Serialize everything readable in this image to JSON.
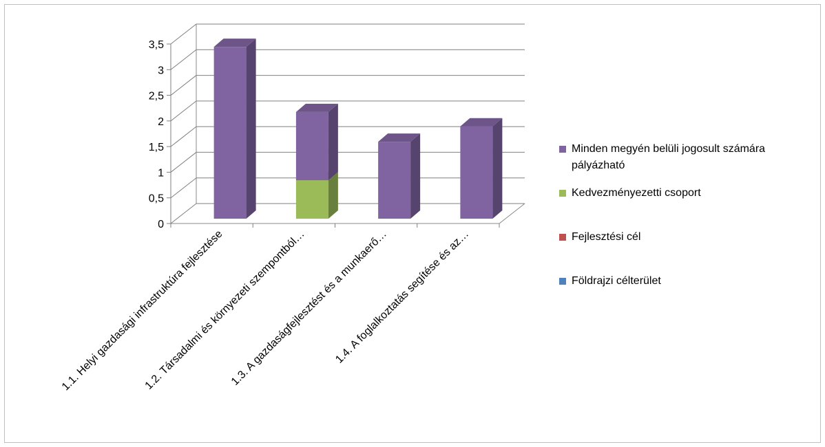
{
  "chart_data": {
    "type": "bar",
    "variant": "3d-stacked-column",
    "categories": [
      "1.1. Helyi gazdasági infrastruktúra fejlesztése",
      "1.2. Társadalmi és környezeti szempontból…",
      "1.3. A gazdaságfejlesztést és a munkaerő…",
      "1.4. A foglalkoztatás segítése és az…"
    ],
    "series": [
      {
        "name": "Földrajzi célterület",
        "color": "#4F81BD",
        "values": [
          0,
          0,
          0,
          0
        ]
      },
      {
        "name": "Fejlesztési cél",
        "color": "#C0504D",
        "values": [
          0,
          0,
          0,
          0
        ]
      },
      {
        "name": "Kedvezményezetti csoport",
        "color": "#9BBB59",
        "values": [
          0,
          0.75,
          0,
          0
        ]
      },
      {
        "name": "Minden megyén belüli jogosult számára pályázható",
        "color": "#8064A2",
        "values": [
          3.35,
          1.33,
          1.5,
          1.8
        ]
      }
    ],
    "yticks": [
      "0",
      "0,5",
      "1",
      "1,5",
      "2",
      "2,5",
      "3",
      "3,5"
    ],
    "ylim": [
      0,
      3.5
    ],
    "grid": true,
    "legend_position": "right"
  },
  "legend": {
    "items": [
      {
        "label": "Minden megyén belüli jogosult számára pályázható",
        "color": "#8064A2"
      },
      {
        "label": "Kedvezményezetti csoport",
        "color": "#9BBB59"
      },
      {
        "label": "Fejlesztési cél",
        "color": "#C0504D"
      },
      {
        "label": "Földrajzi célterület",
        "color": "#4F81BD"
      }
    ]
  }
}
